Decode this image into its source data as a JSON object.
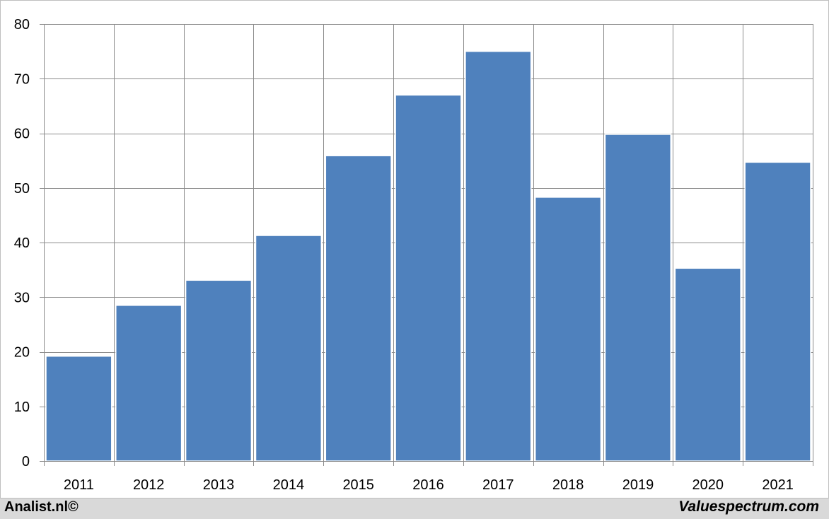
{
  "chart_data": {
    "type": "bar",
    "categories": [
      "2011",
      "2012",
      "2013",
      "2014",
      "2015",
      "2016",
      "2017",
      "2018",
      "2019",
      "2020",
      "2021"
    ],
    "values": [
      19.2,
      28.5,
      33.1,
      41.3,
      55.9,
      67.0,
      75.0,
      48.3,
      59.8,
      35.3,
      54.7
    ],
    "ylim": [
      0,
      80
    ],
    "yticks": [
      0,
      10,
      20,
      30,
      40,
      50,
      60,
      70,
      80
    ],
    "grid": true,
    "bar_color": "#4f81bd"
  },
  "footer": {
    "left_text": "Analist.nl©",
    "right_text": "Valuespectrum.com"
  }
}
